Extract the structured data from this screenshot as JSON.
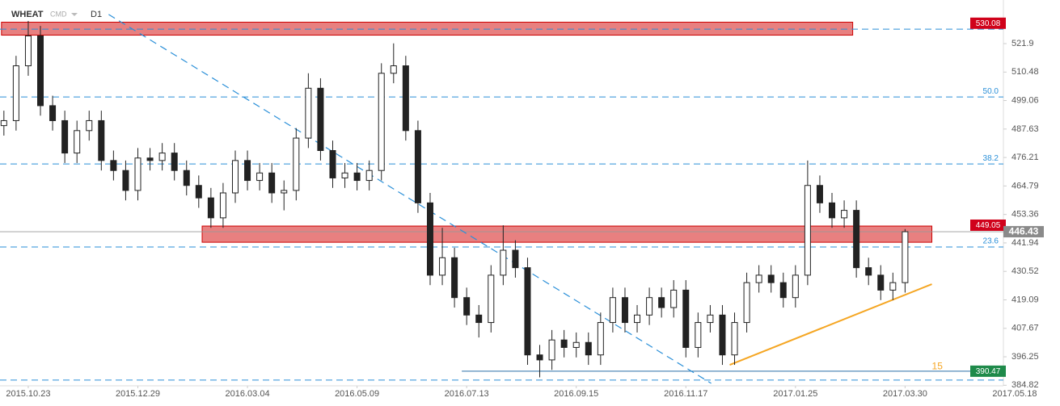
{
  "chart_data": {
    "type": "candlestick",
    "title": "WHEAT",
    "exchange": "CMD",
    "timeframe": "D1",
    "x": [
      -10,
      -5,
      0,
      5,
      10,
      15,
      20,
      25,
      30,
      35,
      40,
      45,
      50,
      55,
      60,
      65,
      70,
      75,
      80,
      85,
      90,
      95,
      100,
      105,
      110,
      115,
      120,
      125,
      130,
      135,
      140,
      145,
      150,
      155,
      160,
      165,
      170,
      175,
      180,
      185,
      190,
      195,
      200,
      205,
      210,
      215,
      220,
      225,
      230,
      235,
      240,
      245,
      250,
      255,
      260,
      265,
      270,
      275,
      280,
      285,
      290,
      295,
      300,
      305,
      310,
      315,
      320,
      325,
      330,
      335,
      340,
      345,
      350,
      355,
      360
    ],
    "open": [
      489,
      491,
      513,
      525,
      497,
      491,
      478,
      487,
      491,
      475,
      471,
      463,
      476,
      475,
      478,
      471,
      465,
      460,
      452,
      462,
      475,
      467,
      470,
      462,
      463,
      484,
      504,
      479,
      468,
      470,
      467,
      471,
      510,
      513,
      487,
      458,
      429,
      436,
      420,
      413,
      410,
      429,
      439,
      432,
      397,
      395,
      403,
      400,
      402,
      397,
      410,
      420,
      410,
      413,
      420,
      416,
      423,
      400,
      410,
      413,
      397,
      410,
      426,
      429,
      426,
      420,
      429,
      465,
      458,
      452,
      455,
      432,
      429,
      423,
      426
    ],
    "high": [
      495,
      517,
      531,
      529,
      501,
      495,
      491,
      495,
      495,
      479,
      475,
      480,
      480,
      482,
      482,
      475,
      469,
      464,
      466,
      479,
      479,
      474,
      474,
      467,
      488,
      510,
      508,
      483,
      474,
      474,
      475,
      514,
      522,
      517,
      491,
      462,
      448,
      440,
      424,
      417,
      433,
      449,
      443,
      436,
      401,
      407,
      407,
      406,
      406,
      414,
      424,
      424,
      417,
      424,
      424,
      427,
      427,
      414,
      417,
      417,
      414,
      430,
      433,
      433,
      430,
      433,
      475,
      469,
      462,
      459,
      459,
      436,
      433,
      430,
      447.5
    ],
    "low": [
      485,
      487,
      509,
      493,
      487,
      474,
      474,
      483,
      471,
      467,
      459,
      459,
      471,
      471,
      467,
      461,
      456,
      448,
      448,
      458,
      463,
      463,
      458,
      455,
      459,
      480,
      475,
      464,
      464,
      463,
      463,
      467,
      506,
      483,
      454,
      425,
      425,
      416,
      409,
      404,
      406,
      425,
      428,
      393,
      388,
      391,
      396,
      396,
      393,
      393,
      406,
      406,
      406,
      409,
      412,
      412,
      396,
      396,
      406,
      393,
      393,
      406,
      422,
      422,
      416,
      416,
      425,
      454,
      448,
      448,
      428,
      425,
      419,
      419,
      422
    ],
    "close": [
      491,
      513,
      525,
      497,
      491,
      478,
      487,
      491,
      475,
      471,
      463,
      476,
      475,
      478,
      471,
      465,
      460,
      452,
      462,
      475,
      467,
      470,
      462,
      463,
      484,
      504,
      479,
      468,
      470,
      467,
      471,
      510,
      513,
      487,
      458,
      429,
      436,
      420,
      413,
      410,
      429,
      439,
      432,
      397,
      395,
      403,
      400,
      402,
      397,
      410,
      420,
      410,
      413,
      420,
      416,
      423,
      400,
      410,
      413,
      397,
      410,
      426,
      429,
      426,
      420,
      429,
      465,
      458,
      452,
      455,
      432,
      429,
      423,
      426,
      446.43
    ],
    "xlim": [
      -11.6,
      410
    ],
    "ylim": [
      384.6,
      539.4
    ],
    "xticks": [
      {
        "value": 0,
        "label": "2015.10.23"
      },
      {
        "value": 45,
        "label": "2015.12.29"
      },
      {
        "value": 90,
        "label": "2016.03.04"
      },
      {
        "value": 135,
        "label": "2016.05.09"
      },
      {
        "value": 180,
        "label": "2016.07.13"
      },
      {
        "value": 225,
        "label": "2016.09.15"
      },
      {
        "value": 270,
        "label": "2016.11.17"
      },
      {
        "value": 315,
        "label": "2017.01.25"
      },
      {
        "value": 360,
        "label": "2017.03.30"
      },
      {
        "value": 405,
        "label": "2017.05.18"
      }
    ],
    "yticks": [
      384.82,
      396.25,
      407.67,
      419.09,
      430.52,
      441.94,
      453.36,
      464.79,
      476.21,
      487.63,
      499.06,
      510.48,
      521.9
    ],
    "zones": [
      {
        "xmin": -11,
        "xmax": 338.5,
        "ymin": 525.3,
        "ymax": 530.5
      },
      {
        "xmin": 71.4,
        "xmax": 371,
        "ymin": 442.2,
        "ymax": 448.7
      }
    ],
    "dashed_levels": [
      527.7,
      386.9
    ],
    "fib_levels": [
      {
        "value": 500.5,
        "label": "50.0"
      },
      {
        "value": 473.6,
        "label": "38.2"
      },
      {
        "value": 440.3,
        "label": "23.6"
      }
    ],
    "support": {
      "value": 390.47,
      "xmin": 178
    },
    "trendlines": [
      {
        "x": [
          33,
          280.4
        ],
        "y": [
          533.6,
          385.6
        ],
        "color": "#2a8fd8",
        "dashed": true
      },
      {
        "x": [
          288,
          371
        ],
        "y": [
          393.0,
          425.4
        ],
        "color": "#f5a623",
        "dashed": false
      }
    ],
    "annotations": [
      {
        "text": "15",
        "x": 371,
        "y": 392.3,
        "color": "#f5a623"
      }
    ],
    "price_labels": [
      {
        "value": 530.08,
        "color": "#d0021b"
      },
      {
        "value": 449.05,
        "color": "#d0021b"
      },
      {
        "value": 446.43,
        "color": "#8a8a8a"
      },
      {
        "value": 390.47,
        "color": "#1e8a4a"
      }
    ],
    "last_price": 446.43
  }
}
